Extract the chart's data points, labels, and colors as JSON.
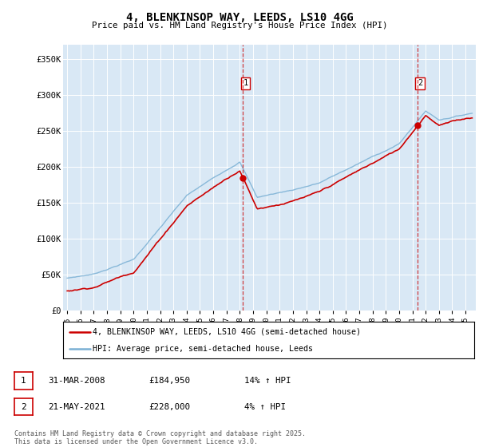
{
  "title": "4, BLENKINSOP WAY, LEEDS, LS10 4GG",
  "subtitle": "Price paid vs. HM Land Registry's House Price Index (HPI)",
  "ylabel_ticks": [
    "£0",
    "£50K",
    "£100K",
    "£150K",
    "£200K",
    "£250K",
    "£300K",
    "£350K"
  ],
  "ytick_values": [
    0,
    50000,
    100000,
    150000,
    200000,
    250000,
    300000,
    350000
  ],
  "ylim": [
    0,
    370000
  ],
  "xlim_start": 1994.7,
  "xlim_end": 2025.8,
  "bg_color": "#d9e8f5",
  "hpi_color": "#7ab0d4",
  "price_color": "#cc0000",
  "vline_color": "#cc0000",
  "marker1_year": 2008.24,
  "marker2_year": 2021.38,
  "marker1_price": 184950,
  "marker2_price": 228000,
  "legend_line1": "4, BLENKINSOP WAY, LEEDS, LS10 4GG (semi-detached house)",
  "legend_line2": "HPI: Average price, semi-detached house, Leeds",
  "table_row1_label": "1",
  "table_row1_date": "31-MAR-2008",
  "table_row1_price": "£184,950",
  "table_row1_hpi": "14% ↑ HPI",
  "table_row2_label": "2",
  "table_row2_date": "21-MAY-2021",
  "table_row2_price": "£228,000",
  "table_row2_hpi": "4% ↑ HPI",
  "footnote": "Contains HM Land Registry data © Crown copyright and database right 2025.\nThis data is licensed under the Open Government Licence v3.0.",
  "xtick_years": [
    1995,
    1996,
    1997,
    1998,
    1999,
    2000,
    2001,
    2002,
    2003,
    2004,
    2005,
    2006,
    2007,
    2008,
    2009,
    2010,
    2011,
    2012,
    2013,
    2014,
    2015,
    2016,
    2017,
    2018,
    2019,
    2020,
    2021,
    2022,
    2023,
    2024,
    2025
  ]
}
